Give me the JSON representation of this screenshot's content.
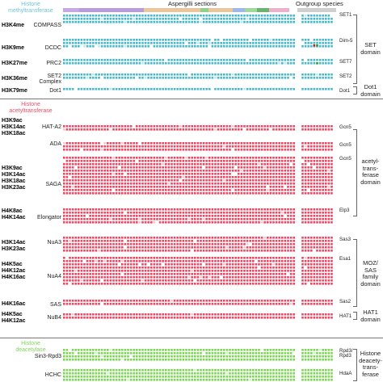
{
  "header": {
    "aspergilli": "Aspergilli sections",
    "outgroup": "Outgroup species"
  },
  "classes": [
    {
      "id": "hmt",
      "line1": "Histone",
      "line2": "methyltransferase",
      "color": "#6cc6d5"
    },
    {
      "id": "hat",
      "line1": "Histone",
      "line2": "acetyltransferase",
      "color": "#ee4c63"
    },
    {
      "id": "hdac",
      "line1": "Histone",
      "line2": "deacetylase",
      "color": "#7dd85a"
    }
  ],
  "colors": {
    "hmt_present": "#48b9cc",
    "hmt_light": "#bfe6ee",
    "hat_present": "#ec4863",
    "hat_light": "#f9c6cf",
    "hdac_present": "#7bd754",
    "hdac_light": "#d3f2c6",
    "absent": "#ffffff",
    "extra_red": "#d02020",
    "extra_green": "#3a9a2a"
  },
  "sections": [
    {
      "name": "COMPASS",
      "marks": [
        "H3K4me"
      ],
      "gene": "SET1",
      "class": "hmt",
      "rows": 3
    },
    {
      "name": "DCDC",
      "marks": [
        "H3K9me"
      ],
      "gene": "Dim-5",
      "class": "hmt",
      "rows": 3
    },
    {
      "name": "PRC2",
      "marks": [
        "H3K27me"
      ],
      "gene": "SET7",
      "class": "hmt",
      "rows": 2
    },
    {
      "name_lines": [
        "SET2",
        "Complex"
      ],
      "marks": [
        "H3K36me"
      ],
      "gene": "SET2",
      "class": "hmt",
      "rows": 2
    },
    {
      "name": "Dot1",
      "marks": [
        "H3K79me"
      ],
      "gene": "Dot1",
      "class": "hmt",
      "rows": 1
    },
    {
      "name": "HAT-A2",
      "marks": [
        "H3K9ac",
        "H3K14ac",
        "H3K18ac"
      ],
      "gene": "Gcn5",
      "class": "hat",
      "rows": 2
    },
    {
      "name": "ADA",
      "marks": [],
      "gene": "Gcn5",
      "class": "hat",
      "rows": 3
    },
    {
      "name": "SAGA",
      "marks": [
        "H3K9ac",
        "H3K14ac",
        "H3K18ac",
        "H3K23ac"
      ],
      "gene": "Gcn5",
      "class": "hat",
      "rows": 12
    },
    {
      "name": "Elongator",
      "marks": [
        "H4K8ac",
        "H4K14ac"
      ],
      "gene": "Elp3",
      "class": "hat",
      "rows": 5
    },
    {
      "name": "NuA3",
      "marks": [
        "H3K14ac",
        "H3K23ac"
      ],
      "gene": "Sas3",
      "class": "hat",
      "rows": 5
    },
    {
      "name": "NuA4",
      "marks": [
        "H4K5ac",
        "H4K12ac",
        "H4K16ac"
      ],
      "gene": "Esa1",
      "class": "hat",
      "rows": 9
    },
    {
      "name": "SAS",
      "marks": [
        "H4K16ac"
      ],
      "gene": "Sas2",
      "class": "hat",
      "rows": 2
    },
    {
      "name": "NuB4",
      "marks": [
        "H4K5ac",
        "H4K12ac"
      ],
      "gene": "HAT1",
      "class": "hat",
      "rows": 2
    },
    {
      "name": "Sin3-Rpd3",
      "marks": [],
      "gene_lines": [
        "Rpd3/",
        "Rpd3"
      ],
      "class": "hdac",
      "rows": 4
    },
    {
      "name": "HCHC",
      "marks": [],
      "gene": "HdaA",
      "class": "hdac",
      "rows": 5
    }
  ],
  "domains": [
    {
      "lines": [
        "SET",
        "domain"
      ]
    },
    {
      "lines": [
        "Dot1",
        "domain"
      ]
    },
    {
      "lines": [
        "acetyl-",
        "trans-",
        "ferase",
        "domain"
      ]
    },
    {
      "lines": [
        "MOZ/",
        "SAS",
        "family",
        "domain"
      ]
    },
    {
      "lines": [
        "HAT1",
        "domain"
      ]
    },
    {
      "lines": [
        "Histone",
        "deacety-",
        "trans-",
        "ferase"
      ]
    }
  ]
}
